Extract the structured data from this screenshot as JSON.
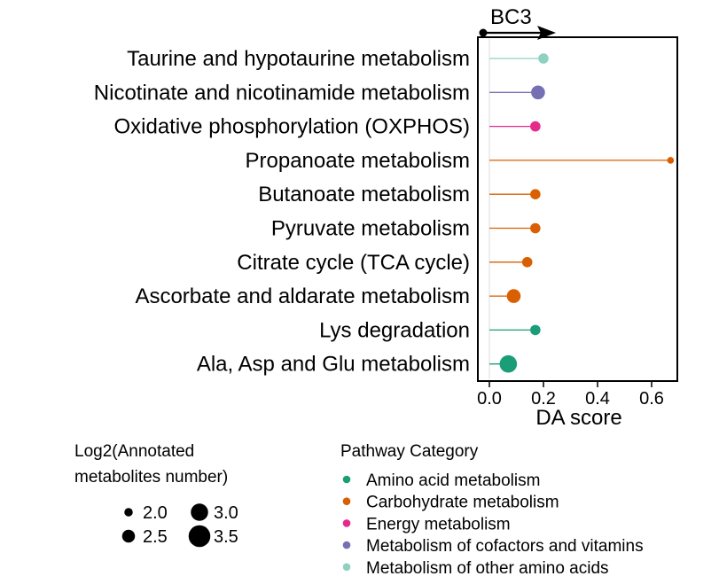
{
  "chart_data": {
    "type": "lollipop",
    "panel_title": "BC3",
    "xlabel": "DA score",
    "xlim": [
      -0.03,
      0.74
    ],
    "xticks": [
      0.0,
      0.2,
      0.4,
      0.6
    ],
    "xtick_labels": [
      "0.0",
      "0.2",
      "0.4",
      "0.6"
    ],
    "pathways": [
      {
        "name": "Taurine and hypotaurine metabolism",
        "da_score": 0.2,
        "log2_count": 2.5,
        "category": "Metabolism of other amino acids"
      },
      {
        "name": "Nicotinate and nicotinamide metabolism",
        "da_score": 0.18,
        "log2_count": 3.0,
        "category": "Metabolism of cofactors and vitamins"
      },
      {
        "name": "Oxidative phosphorylation (OXPHOS)",
        "da_score": 0.17,
        "log2_count": 2.5,
        "category": "Energy metabolism"
      },
      {
        "name": "Propanoate metabolism",
        "da_score": 0.67,
        "log2_count": 2.0,
        "category": "Carbohydrate metabolism"
      },
      {
        "name": "Butanoate metabolism",
        "da_score": 0.17,
        "log2_count": 2.5,
        "category": "Carbohydrate metabolism"
      },
      {
        "name": "Pyruvate metabolism",
        "da_score": 0.17,
        "log2_count": 2.5,
        "category": "Carbohydrate metabolism"
      },
      {
        "name": "Citrate cycle (TCA cycle)",
        "da_score": 0.14,
        "log2_count": 2.5,
        "category": "Carbohydrate metabolism"
      },
      {
        "name": "Ascorbate and aldarate metabolism",
        "da_score": 0.09,
        "log2_count": 3.0,
        "category": "Carbohydrate metabolism"
      },
      {
        "name": "Lys degradation",
        "da_score": 0.17,
        "log2_count": 2.5,
        "category": "Amino acid metabolism"
      },
      {
        "name": "Ala, Asp and Glu metabolism",
        "da_score": 0.07,
        "log2_count": 3.5,
        "category": "Amino acid metabolism"
      }
    ],
    "size_legend": {
      "title_lines": [
        "Log2(Annotated",
        "metabolites number)"
      ],
      "items": [
        {
          "label": "2.0",
          "value": 2.0
        },
        {
          "label": "3.0",
          "value": 3.0
        },
        {
          "label": "2.5",
          "value": 2.5
        },
        {
          "label": "3.5",
          "value": 3.5
        }
      ]
    },
    "color_legend": {
      "title": "Pathway Category",
      "items": [
        {
          "label": "Amino acid metabolism",
          "color": "#1b9e77"
        },
        {
          "label": "Carbohydrate metabolism",
          "color": "#d95f02"
        },
        {
          "label": "Energy metabolism",
          "color": "#e7298a"
        },
        {
          "label": "Metabolism of cofactors and vitamins",
          "color": "#7570b3"
        },
        {
          "label": "Metabolism of other amino acids",
          "color": "#8fd1c1"
        }
      ]
    }
  }
}
